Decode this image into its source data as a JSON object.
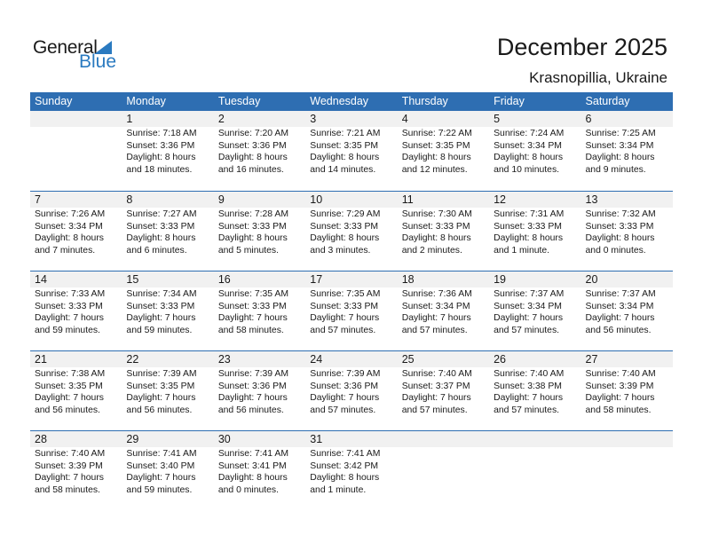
{
  "logo": {
    "line1": "General",
    "line2": "Blue"
  },
  "title": "December 2025",
  "location": "Krasnopillia, Ukraine",
  "colors": {
    "header": "#2e6eb2",
    "logo_blue": "#2a7ac0",
    "day_band": "#f1f1f1"
  },
  "days_of_week": [
    "Sunday",
    "Monday",
    "Tuesday",
    "Wednesday",
    "Thursday",
    "Friday",
    "Saturday"
  ],
  "weeks": [
    [
      null,
      {
        "day": "1",
        "sunrise": "Sunrise: 7:18 AM",
        "sunset": "Sunset: 3:36 PM",
        "daylight1": "Daylight: 8 hours",
        "daylight2": "and 18 minutes."
      },
      {
        "day": "2",
        "sunrise": "Sunrise: 7:20 AM",
        "sunset": "Sunset: 3:36 PM",
        "daylight1": "Daylight: 8 hours",
        "daylight2": "and 16 minutes."
      },
      {
        "day": "3",
        "sunrise": "Sunrise: 7:21 AM",
        "sunset": "Sunset: 3:35 PM",
        "daylight1": "Daylight: 8 hours",
        "daylight2": "and 14 minutes."
      },
      {
        "day": "4",
        "sunrise": "Sunrise: 7:22 AM",
        "sunset": "Sunset: 3:35 PM",
        "daylight1": "Daylight: 8 hours",
        "daylight2": "and 12 minutes."
      },
      {
        "day": "5",
        "sunrise": "Sunrise: 7:24 AM",
        "sunset": "Sunset: 3:34 PM",
        "daylight1": "Daylight: 8 hours",
        "daylight2": "and 10 minutes."
      },
      {
        "day": "6",
        "sunrise": "Sunrise: 7:25 AM",
        "sunset": "Sunset: 3:34 PM",
        "daylight1": "Daylight: 8 hours",
        "daylight2": "and 9 minutes."
      }
    ],
    [
      {
        "day": "7",
        "sunrise": "Sunrise: 7:26 AM",
        "sunset": "Sunset: 3:34 PM",
        "daylight1": "Daylight: 8 hours",
        "daylight2": "and 7 minutes."
      },
      {
        "day": "8",
        "sunrise": "Sunrise: 7:27 AM",
        "sunset": "Sunset: 3:33 PM",
        "daylight1": "Daylight: 8 hours",
        "daylight2": "and 6 minutes."
      },
      {
        "day": "9",
        "sunrise": "Sunrise: 7:28 AM",
        "sunset": "Sunset: 3:33 PM",
        "daylight1": "Daylight: 8 hours",
        "daylight2": "and 5 minutes."
      },
      {
        "day": "10",
        "sunrise": "Sunrise: 7:29 AM",
        "sunset": "Sunset: 3:33 PM",
        "daylight1": "Daylight: 8 hours",
        "daylight2": "and 3 minutes."
      },
      {
        "day": "11",
        "sunrise": "Sunrise: 7:30 AM",
        "sunset": "Sunset: 3:33 PM",
        "daylight1": "Daylight: 8 hours",
        "daylight2": "and 2 minutes."
      },
      {
        "day": "12",
        "sunrise": "Sunrise: 7:31 AM",
        "sunset": "Sunset: 3:33 PM",
        "daylight1": "Daylight: 8 hours",
        "daylight2": "and 1 minute."
      },
      {
        "day": "13",
        "sunrise": "Sunrise: 7:32 AM",
        "sunset": "Sunset: 3:33 PM",
        "daylight1": "Daylight: 8 hours",
        "daylight2": "and 0 minutes."
      }
    ],
    [
      {
        "day": "14",
        "sunrise": "Sunrise: 7:33 AM",
        "sunset": "Sunset: 3:33 PM",
        "daylight1": "Daylight: 7 hours",
        "daylight2": "and 59 minutes."
      },
      {
        "day": "15",
        "sunrise": "Sunrise: 7:34 AM",
        "sunset": "Sunset: 3:33 PM",
        "daylight1": "Daylight: 7 hours",
        "daylight2": "and 59 minutes."
      },
      {
        "day": "16",
        "sunrise": "Sunrise: 7:35 AM",
        "sunset": "Sunset: 3:33 PM",
        "daylight1": "Daylight: 7 hours",
        "daylight2": "and 58 minutes."
      },
      {
        "day": "17",
        "sunrise": "Sunrise: 7:35 AM",
        "sunset": "Sunset: 3:33 PM",
        "daylight1": "Daylight: 7 hours",
        "daylight2": "and 57 minutes."
      },
      {
        "day": "18",
        "sunrise": "Sunrise: 7:36 AM",
        "sunset": "Sunset: 3:34 PM",
        "daylight1": "Daylight: 7 hours",
        "daylight2": "and 57 minutes."
      },
      {
        "day": "19",
        "sunrise": "Sunrise: 7:37 AM",
        "sunset": "Sunset: 3:34 PM",
        "daylight1": "Daylight: 7 hours",
        "daylight2": "and 57 minutes."
      },
      {
        "day": "20",
        "sunrise": "Sunrise: 7:37 AM",
        "sunset": "Sunset: 3:34 PM",
        "daylight1": "Daylight: 7 hours",
        "daylight2": "and 56 minutes."
      }
    ],
    [
      {
        "day": "21",
        "sunrise": "Sunrise: 7:38 AM",
        "sunset": "Sunset: 3:35 PM",
        "daylight1": "Daylight: 7 hours",
        "daylight2": "and 56 minutes."
      },
      {
        "day": "22",
        "sunrise": "Sunrise: 7:39 AM",
        "sunset": "Sunset: 3:35 PM",
        "daylight1": "Daylight: 7 hours",
        "daylight2": "and 56 minutes."
      },
      {
        "day": "23",
        "sunrise": "Sunrise: 7:39 AM",
        "sunset": "Sunset: 3:36 PM",
        "daylight1": "Daylight: 7 hours",
        "daylight2": "and 56 minutes."
      },
      {
        "day": "24",
        "sunrise": "Sunrise: 7:39 AM",
        "sunset": "Sunset: 3:36 PM",
        "daylight1": "Daylight: 7 hours",
        "daylight2": "and 57 minutes."
      },
      {
        "day": "25",
        "sunrise": "Sunrise: 7:40 AM",
        "sunset": "Sunset: 3:37 PM",
        "daylight1": "Daylight: 7 hours",
        "daylight2": "and 57 minutes."
      },
      {
        "day": "26",
        "sunrise": "Sunrise: 7:40 AM",
        "sunset": "Sunset: 3:38 PM",
        "daylight1": "Daylight: 7 hours",
        "daylight2": "and 57 minutes."
      },
      {
        "day": "27",
        "sunrise": "Sunrise: 7:40 AM",
        "sunset": "Sunset: 3:39 PM",
        "daylight1": "Daylight: 7 hours",
        "daylight2": "and 58 minutes."
      }
    ],
    [
      {
        "day": "28",
        "sunrise": "Sunrise: 7:40 AM",
        "sunset": "Sunset: 3:39 PM",
        "daylight1": "Daylight: 7 hours",
        "daylight2": "and 58 minutes."
      },
      {
        "day": "29",
        "sunrise": "Sunrise: 7:41 AM",
        "sunset": "Sunset: 3:40 PM",
        "daylight1": "Daylight: 7 hours",
        "daylight2": "and 59 minutes."
      },
      {
        "day": "30",
        "sunrise": "Sunrise: 7:41 AM",
        "sunset": "Sunset: 3:41 PM",
        "daylight1": "Daylight: 8 hours",
        "daylight2": "and 0 minutes."
      },
      {
        "day": "31",
        "sunrise": "Sunrise: 7:41 AM",
        "sunset": "Sunset: 3:42 PM",
        "daylight1": "Daylight: 8 hours",
        "daylight2": "and 1 minute."
      },
      null,
      null,
      null
    ]
  ]
}
